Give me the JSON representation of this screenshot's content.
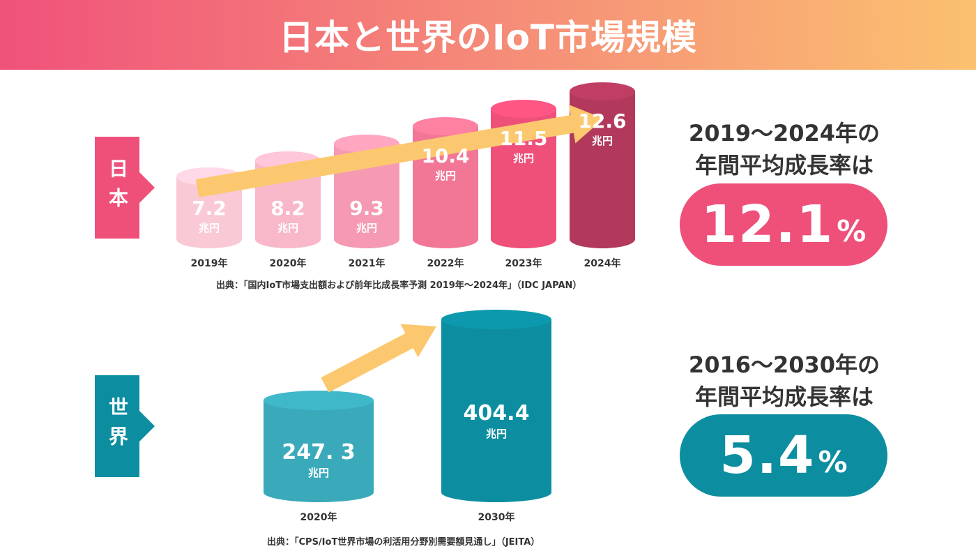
{
  "title": "日本と世界のIoT市場規模",
  "japan": {
    "label": "日本",
    "source": "出典：「国内IoT市場支出額および前年比成長率予測 2019年～2024年」（IDC JAPAN）",
    "rate_heading_line1": "2019～2024年の",
    "rate_heading_line2": "年間平均成長率は",
    "rate_value": "12.1",
    "rate_unit": "%"
  },
  "world": {
    "label": "世界",
    "source": "出典：「CPS/IoT世界市場の利活用分野別需要額見通し」（JEITA）",
    "rate_heading_line1": "2016～2030年の",
    "rate_heading_line2": "年間平均成長率は",
    "rate_value": "5.4",
    "rate_unit": "%"
  },
  "colors": {
    "japan_bars": [
      "#f9c9d6",
      "#f8b8c9",
      "#f59ab2",
      "#f27796",
      "#ee507a",
      "#b2395c"
    ],
    "world_bars": [
      "#3aaabb",
      "#0c8ea0"
    ],
    "arrow": "#fcc86f"
  },
  "chart_data": [
    {
      "type": "bar",
      "categories": [
        "2019年",
        "2020年",
        "2021年",
        "2022年",
        "2023年",
        "2024年"
      ],
      "values": [
        7.2,
        8.2,
        9.3,
        10.4,
        11.5,
        12.6
      ],
      "value_labels": [
        "7.2",
        "8.2",
        "9.3",
        "10.4",
        "11.5",
        "12.6"
      ],
      "unit": "兆円"
    },
    {
      "type": "bar",
      "categories": [
        "2020年",
        "2030年"
      ],
      "values": [
        247.3,
        404.4
      ],
      "value_labels": [
        "247. 3",
        "404.4"
      ],
      "unit": "兆円"
    }
  ]
}
